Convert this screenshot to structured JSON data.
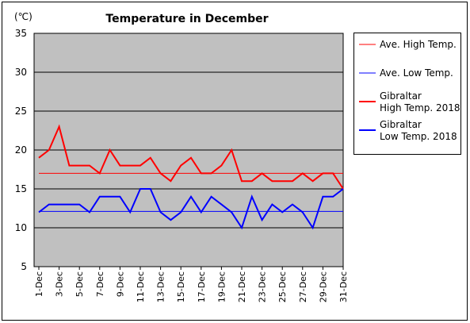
{
  "chart_data": {
    "type": "line",
    "title": "Temperature in December",
    "unit_label": "(℃)",
    "ylim": [
      5,
      35
    ],
    "y_ticks": [
      5,
      10,
      15,
      20,
      25,
      30,
      35
    ],
    "grid": true,
    "legend_position": "right",
    "categories": [
      "1-Dec",
      "2-Dec",
      "3-Dec",
      "4-Dec",
      "5-Dec",
      "6-Dec",
      "7-Dec",
      "8-Dec",
      "9-Dec",
      "10-Dec",
      "11-Dec",
      "12-Dec",
      "13-Dec",
      "14-Dec",
      "15-Dec",
      "16-Dec",
      "17-Dec",
      "18-Dec",
      "19-Dec",
      "20-Dec",
      "21-Dec",
      "22-Dec",
      "23-Dec",
      "24-Dec",
      "25-Dec",
      "26-Dec",
      "27-Dec",
      "28-Dec",
      "29-Dec",
      "30-Dec",
      "31-Dec"
    ],
    "x_tick_labels": [
      "1-Dec",
      "3-Dec",
      "5-Dec",
      "7-Dec",
      "9-Dec",
      "11-Dec",
      "13-Dec",
      "15-Dec",
      "17-Dec",
      "19-Dec",
      "21-Dec",
      "23-Dec",
      "25-Dec",
      "27-Dec",
      "29-Dec",
      "31-Dec"
    ],
    "series": [
      {
        "name": "Ave. High Temp.",
        "color": "#ff0000",
        "style": "thin",
        "values": [
          17,
          17,
          17,
          17,
          17,
          17,
          17,
          17,
          17,
          17,
          17,
          17,
          17,
          17,
          17,
          17,
          17,
          17,
          17,
          17,
          17,
          17,
          17,
          17,
          17,
          17,
          17,
          17,
          17,
          17,
          17
        ]
      },
      {
        "name": "Ave. Low Temp.",
        "color": "#0000ff",
        "style": "thin",
        "values": [
          12.1,
          12.1,
          12.1,
          12.1,
          12.1,
          12.1,
          12.1,
          12.1,
          12.1,
          12.1,
          12.1,
          12.1,
          12.1,
          12.1,
          12.1,
          12.1,
          12.1,
          12.1,
          12.1,
          12.1,
          12.1,
          12.1,
          12.1,
          12.1,
          12.1,
          12.1,
          12.1,
          12.1,
          12.1,
          12.1,
          12.1
        ]
      },
      {
        "name": "Gibraltar\nHigh Temp. 2018",
        "color": "#ff0000",
        "style": "thick",
        "values": [
          19,
          20,
          23,
          18,
          18,
          18,
          17,
          20,
          18,
          18,
          18,
          19,
          17,
          16,
          18,
          19,
          17,
          17,
          18,
          20,
          16,
          16,
          17,
          16,
          16,
          16,
          17,
          16,
          17,
          17,
          15
        ]
      },
      {
        "name": "Gibraltar\nLow Temp. 2018",
        "color": "#0000ff",
        "style": "thick",
        "values": [
          12,
          13,
          13,
          13,
          13,
          12,
          14,
          14,
          14,
          12,
          15,
          15,
          12,
          11,
          12,
          14,
          12,
          14,
          13,
          12,
          10,
          14,
          11,
          13,
          12,
          13,
          12,
          10,
          14,
          14,
          15
        ]
      }
    ]
  }
}
